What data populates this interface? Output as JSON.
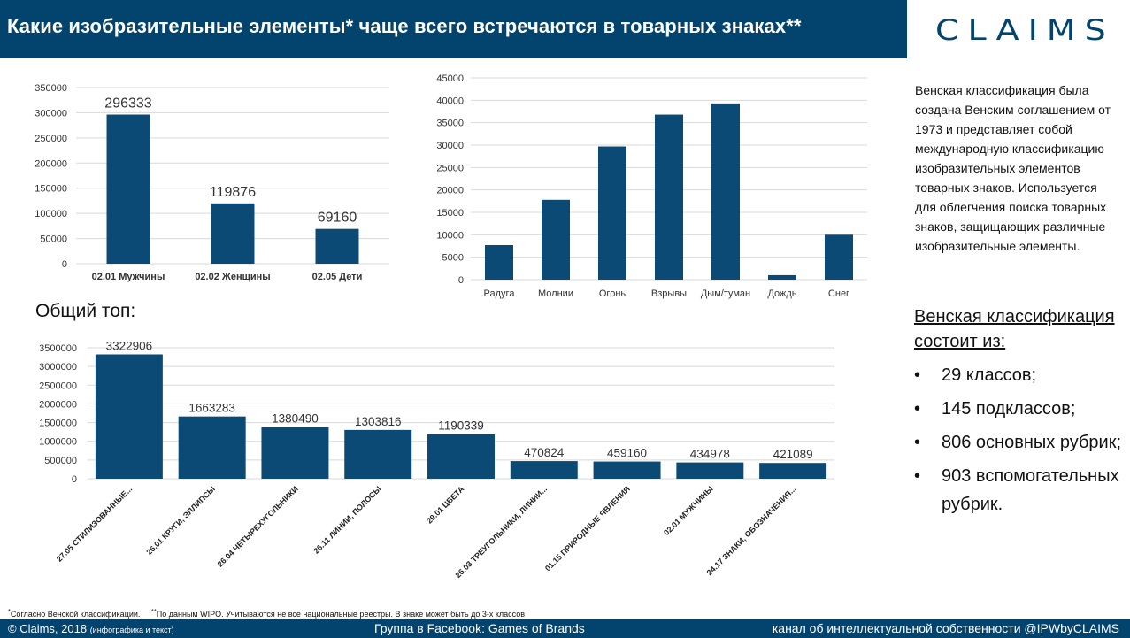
{
  "header": {
    "title": "Какие изобразительные элементы* чаще всего встречаются в товарных знаках**"
  },
  "logo": {
    "text": "CLAIMS"
  },
  "subtitle": "Общий топ:",
  "sidebar": {
    "description": "Венская классификация была создана Венским соглашением от 1973 и представляет собой международную классификацию изобразительных элементов товарных знаков. Используется для облегчения поиска товарных знаков, защищающих различные изобразительные элементы.",
    "heading": "Венская классификация состоит из:",
    "items": [
      {
        "bullet": "•",
        "text": "29 классов;"
      },
      {
        "bullet": "•",
        "text": "145 подклассов;"
      },
      {
        "bullet": "•",
        "text": "806 основных рубрик;"
      },
      {
        "bullet": "•",
        "text": "903 вспомогательных рубрик."
      }
    ]
  },
  "footnote": {
    "first_mark": "*",
    "first": "Согласно Венской классификации.",
    "second_mark": "**",
    "second": "По данным WIPO. Учитываются не все национальные реестры. В знаке может быть до 3-х классов"
  },
  "footer": {
    "left": "© Claims, 2018",
    "left_small": "(инфографика и текст)",
    "center": "Группа в Facebook: Games of Brands",
    "right": "канал об интеллектуальной собственности @IPWbyCLAIMS"
  },
  "colors": {
    "brand": "#03446e",
    "bar": "#0b4a75",
    "grid": "#d9d9d9"
  },
  "chart_data": [
    {
      "type": "bar",
      "categories": [
        "02.01 Мужчины",
        "02.02 Женщины",
        "02.05 Дети"
      ],
      "values": [
        296333,
        119876,
        69160
      ],
      "data_labels": [
        "296333",
        "119876",
        "69160"
      ],
      "ylim": [
        0,
        350000
      ],
      "yticks": [
        "0",
        "50000",
        "100000",
        "150000",
        "200000",
        "250000",
        "300000",
        "350000"
      ],
      "grid": true
    },
    {
      "type": "bar",
      "categories": [
        "Радуга",
        "Молнии",
        "Огонь",
        "Взрывы",
        "Дым/туман",
        "Дождь",
        "Снег"
      ],
      "values": [
        7700,
        17800,
        29700,
        36800,
        39300,
        1000,
        10000
      ],
      "ylim": [
        0,
        45000
      ],
      "yticks": [
        "0",
        "5000",
        "10000",
        "15000",
        "20000",
        "25000",
        "30000",
        "35000",
        "40000",
        "45000"
      ],
      "grid": true
    },
    {
      "type": "bar",
      "categories": [
        "27.05 СТИЛИЗОВАННЫЕ...",
        "26.01 КРУГИ, ЭЛЛИПСЫ",
        "26.04 ЧЕТЫРЕХУГОЛЬНИКИ",
        "26.11 ЛИНИИ, ПОЛОСЫ",
        "29.01 ЦВЕТА",
        "26.03 ТРЕУГОЛЬНИКИ, ЛИНИИ...",
        "01.15 ПРИРОДНЫЕ ЯВЛЕНИЯ",
        "02.01 МУЖЧИНЫ",
        "24.17 ЗНАКИ, ОБОЗНАЧЕНИЯ..."
      ],
      "values": [
        3322906,
        1663283,
        1380490,
        1303816,
        1190339,
        470824,
        459160,
        434978,
        421089
      ],
      "data_labels": [
        "3322906",
        "1663283",
        "1380490",
        "1303816",
        "1190339",
        "470824",
        "459160",
        "434978",
        "421089"
      ],
      "ylim": [
        0,
        3500000
      ],
      "yticks": [
        "0",
        "500000",
        "1000000",
        "1500000",
        "2000000",
        "2500000",
        "3000000",
        "3500000"
      ],
      "grid": true
    }
  ]
}
